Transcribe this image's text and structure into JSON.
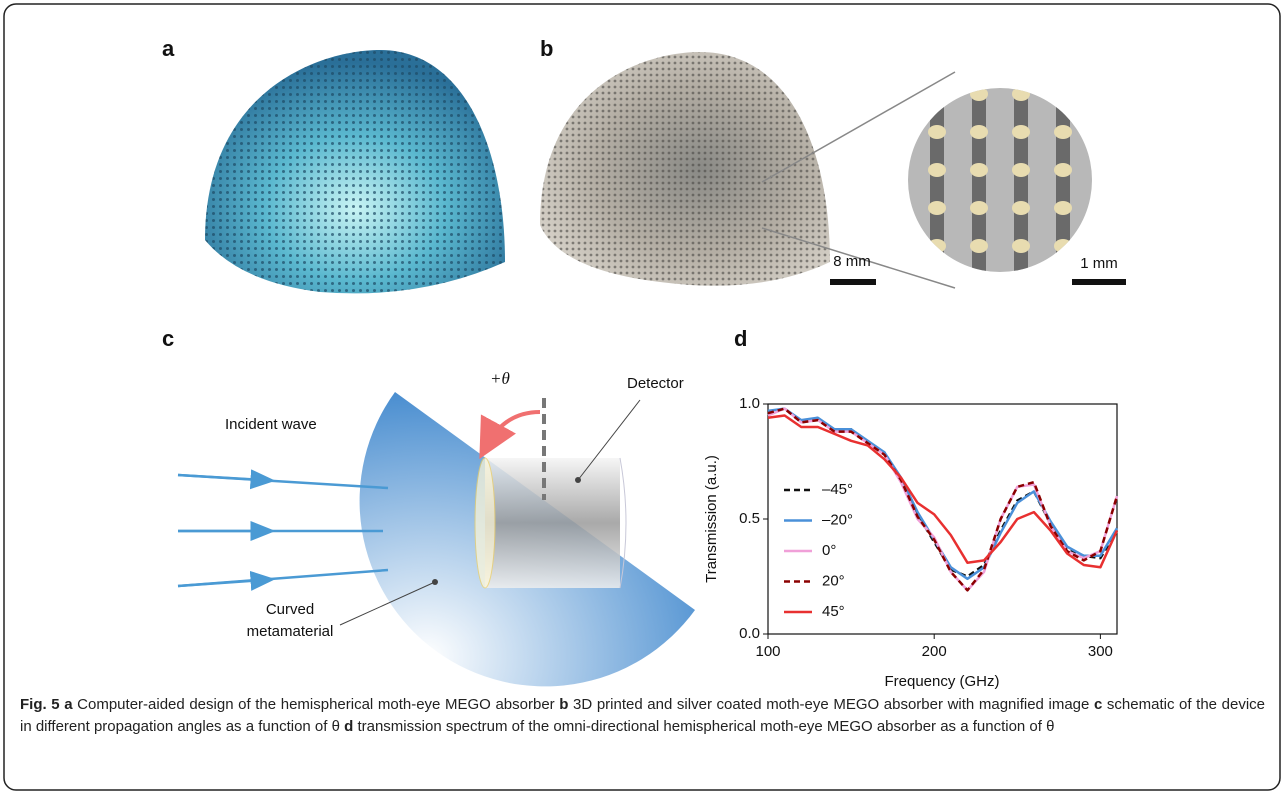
{
  "panel_labels": [
    "a",
    "b",
    "c",
    "d"
  ],
  "panel_b": {
    "scale_bar_main": "8 mm",
    "scale_bar_inset": "1 mm"
  },
  "panel_c": {
    "angle": "+θ",
    "incident": "Incident wave",
    "detector": "Detector",
    "metamaterial": [
      "Curved",
      "metamaterial"
    ]
  },
  "chart_data": {
    "type": "line",
    "xlabel": "Frequency (GHz)",
    "ylabel": "Transmission (a.u.)",
    "xlim": [
      100,
      310
    ],
    "ylim": [
      0,
      1.0
    ],
    "xticks": [
      100,
      200,
      300
    ],
    "yticks": [
      {
        "value": 0,
        "label": "0.0"
      },
      {
        "value": 0.5,
        "label": "0.5"
      },
      {
        "value": 1.0,
        "label": "1.0"
      }
    ],
    "legend": "left",
    "x": [
      100,
      110,
      120,
      130,
      140,
      150,
      160,
      170,
      180,
      190,
      200,
      210,
      220,
      230,
      240,
      250,
      260,
      270,
      280,
      290,
      300,
      310
    ],
    "series": [
      {
        "name": "–45°",
        "color": "#111111",
        "style": "dashed",
        "values": [
          0.96,
          0.98,
          0.92,
          0.94,
          0.88,
          0.89,
          0.83,
          0.79,
          0.67,
          0.52,
          0.4,
          0.28,
          0.25,
          0.3,
          0.45,
          0.58,
          0.62,
          0.48,
          0.37,
          0.34,
          0.33,
          0.45
        ]
      },
      {
        "name": "–20°",
        "color": "#4a90d9",
        "style": "solid",
        "values": [
          0.97,
          0.98,
          0.93,
          0.94,
          0.89,
          0.89,
          0.84,
          0.79,
          0.68,
          0.53,
          0.41,
          0.29,
          0.24,
          0.29,
          0.44,
          0.57,
          0.62,
          0.49,
          0.38,
          0.34,
          0.34,
          0.46
        ]
      },
      {
        "name": "0°",
        "color": "#f0a0d8",
        "style": "solid",
        "values": [
          0.95,
          0.98,
          0.92,
          0.93,
          0.88,
          0.88,
          0.83,
          0.78,
          0.66,
          0.5,
          0.42,
          0.27,
          0.19,
          0.27,
          0.5,
          0.64,
          0.65,
          0.47,
          0.36,
          0.33,
          0.36,
          0.6
        ]
      },
      {
        "name": "20°",
        "color": "#8b0000",
        "style": "dashed",
        "values": [
          0.96,
          0.98,
          0.92,
          0.93,
          0.88,
          0.88,
          0.83,
          0.78,
          0.67,
          0.51,
          0.41,
          0.27,
          0.19,
          0.28,
          0.5,
          0.64,
          0.66,
          0.47,
          0.36,
          0.32,
          0.36,
          0.6
        ]
      },
      {
        "name": "45°",
        "color": "#e83030",
        "style": "solid",
        "values": [
          0.94,
          0.95,
          0.9,
          0.9,
          0.87,
          0.84,
          0.82,
          0.76,
          0.68,
          0.57,
          0.52,
          0.43,
          0.31,
          0.32,
          0.4,
          0.5,
          0.53,
          0.45,
          0.35,
          0.3,
          0.29,
          0.45
        ]
      }
    ]
  },
  "caption": [
    {
      "text": "Fig. 5 a",
      "bold": true
    },
    {
      "text": " Computer-aided design of the hemispherical moth-eye MEGO absorber ",
      "bold": false
    },
    {
      "text": "b",
      "bold": true
    },
    {
      "text": " 3D printed and silver coated moth-eye MEGO absorber with magnified image ",
      "bold": false
    },
    {
      "text": "c",
      "bold": true
    },
    {
      "text": " schematic of the device in different propagation angles as a function of θ ",
      "bold": false
    },
    {
      "text": "d",
      "bold": true
    },
    {
      "text": " transmission spectrum of the omni-directional hemispherical moth-eye MEGO absorber as a function of θ",
      "bold": false
    }
  ]
}
